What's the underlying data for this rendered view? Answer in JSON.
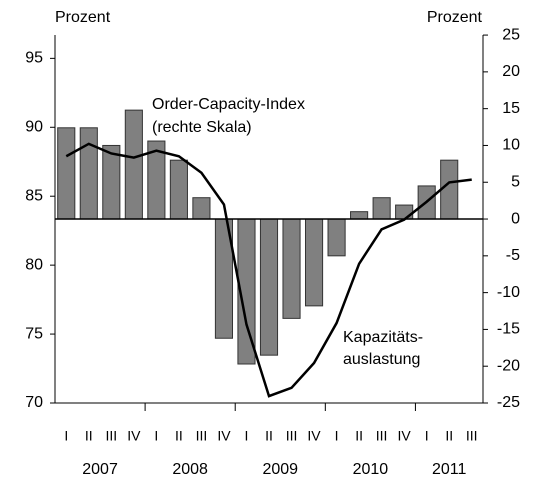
{
  "chart_data": {
    "type": "bar-line",
    "y_label": "Prozent",
    "y2_label": "Prozent",
    "annotations": [
      "Order-Capacity-Index",
      "(rechte Skala)",
      "Kapazitäts-",
      "auslastung"
    ],
    "categories": [
      "I",
      "II",
      "III",
      "IV",
      "I",
      "II",
      "III",
      "IV",
      "I",
      "II",
      "III",
      "IV",
      "I",
      "II",
      "III",
      "IV",
      "I",
      "II",
      "III"
    ],
    "years": [
      "2007",
      "2008",
      "2009",
      "2010",
      "2011"
    ],
    "series": [
      {
        "name": "Order-Capacity-Index",
        "type": "bar",
        "axis": "y2",
        "color": "#808080",
        "values": [
          12.4,
          12.4,
          10,
          14.8,
          10.6,
          8,
          2.9,
          -16.2,
          -19.7,
          -18.5,
          -13.5,
          -11.8,
          -5,
          1,
          2.9,
          1.9,
          4.5,
          8,
          null
        ]
      },
      {
        "name": "Kapazitätsauslastung",
        "type": "line",
        "axis": "y",
        "color": "#000000",
        "values": [
          87.9,
          88.8,
          88.1,
          87.8,
          88.3,
          87.9,
          86.7,
          84.4,
          75.7,
          70.5,
          71.1,
          72.9,
          75.8,
          80.1,
          82.6,
          83.3,
          84.6,
          86,
          86.2
        ]
      }
    ],
    "ylim": [
      70,
      98
    ],
    "yticks": [
      70,
      75,
      80,
      85,
      90,
      95
    ],
    "y2lim": [
      -25,
      28
    ],
    "y2ticks": [
      -25,
      -20,
      -15,
      -10,
      -5,
      0,
      5,
      10,
      15,
      20,
      25
    ]
  }
}
